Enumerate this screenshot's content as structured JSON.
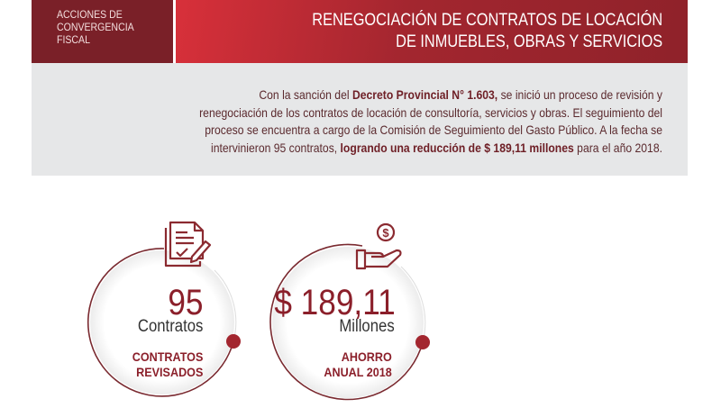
{
  "header": {
    "section_lines": [
      "ACCIONES DE",
      "CONVERGENCIA",
      "FISCAL"
    ],
    "title_lines": [
      "RENEGOCIACIÓN DE CONTRATOS DE LOCACIÓN",
      "DE INMUEBLES, OBRAS Y SERVICIOS"
    ]
  },
  "intro": {
    "p1": "Con la sanción del ",
    "b1": "Decreto Provincial N° 1.603,",
    "p2": " se inició un proceso de revisión y",
    "p3": "renegociación de los contratos de locación de consultoría, servicios y obras. El seguimiento del",
    "p4": "proceso se encuentra a cargo de la Comisión de Seguimiento del Gasto Público. A la fecha se",
    "p5": "intervinieron 95 contratos, ",
    "b2": "lograndο una reducción de $ 189,11 millones",
    "p6": " para el año 2018."
  },
  "stats": [
    {
      "icon": "contract-document-icon",
      "value": "95",
      "unit": "Contratos",
      "label_lines": [
        "CONTRATOS",
        "REVISADOS"
      ]
    },
    {
      "icon": "hand-coin-icon",
      "value": "$ 189,11",
      "unit": "Millones",
      "label_lines": [
        "AHORRO",
        "ANUAL 2018"
      ]
    }
  ],
  "colors": {
    "brand_dark": "#7a2028",
    "brand_red": "#d8303a",
    "accent": "#8b1f2a",
    "panel": "#e6e7e8"
  }
}
